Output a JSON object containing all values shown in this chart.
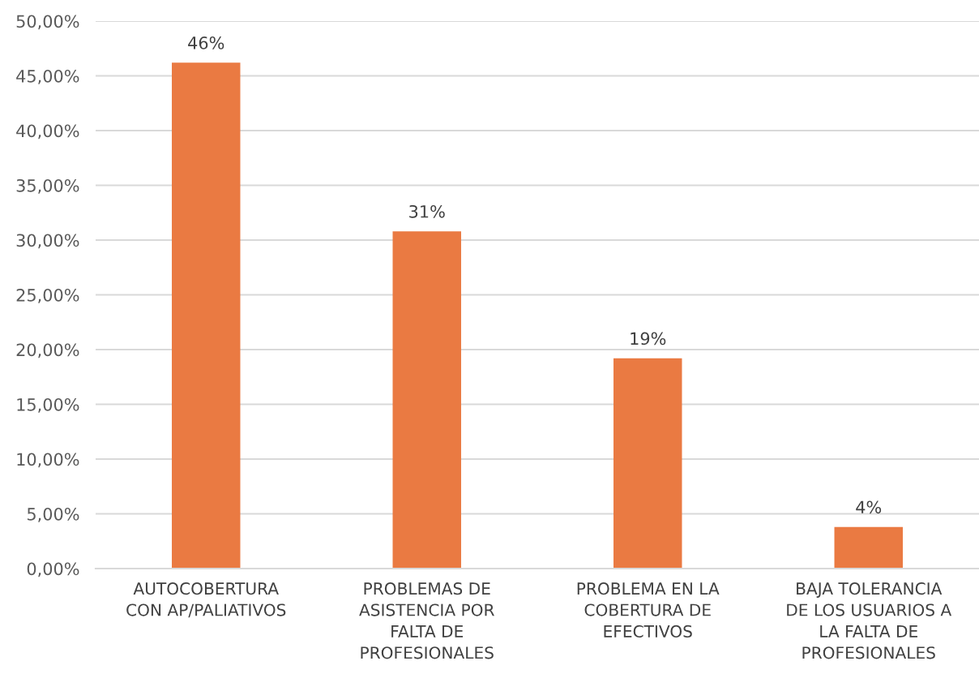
{
  "chart_data": {
    "type": "bar",
    "categories": [
      "AUTOCOBERTURA\nCON AP/PALIATIVOS",
      "PROBLEMAS DE\nASISTENCIA POR\nFALTA DE\nPROFESIONALES",
      "PROBLEMA EN LA\nCOBERTURA DE\nEFECTIVOS",
      "BAJA TOLERANCIA\nDE LOS USUARIOS A\nLA FALTA DE\nPROFESIONALES"
    ],
    "values": [
      46.2,
      30.8,
      19.2,
      3.8
    ],
    "color": "#ea7a42",
    "value_labels": [
      "46%",
      "31%",
      "19%",
      "4%"
    ],
    "ylim": [
      0,
      50
    ],
    "yticks": [
      {
        "value": 0,
        "label": "0,00%"
      },
      {
        "value": 5,
        "label": "5,00%"
      },
      {
        "value": 10,
        "label": "10,00%"
      },
      {
        "value": 15,
        "label": "15,00%"
      },
      {
        "value": 20,
        "label": "20,00%"
      },
      {
        "value": 25,
        "label": "25,00%"
      },
      {
        "value": 30,
        "label": "30,00%"
      },
      {
        "value": 35,
        "label": "35,00%"
      },
      {
        "value": 40,
        "label": "40,00%"
      },
      {
        "value": 45,
        "label": "45,00%"
      },
      {
        "value": 50,
        "label": "50,00%"
      }
    ],
    "grid": "y"
  }
}
